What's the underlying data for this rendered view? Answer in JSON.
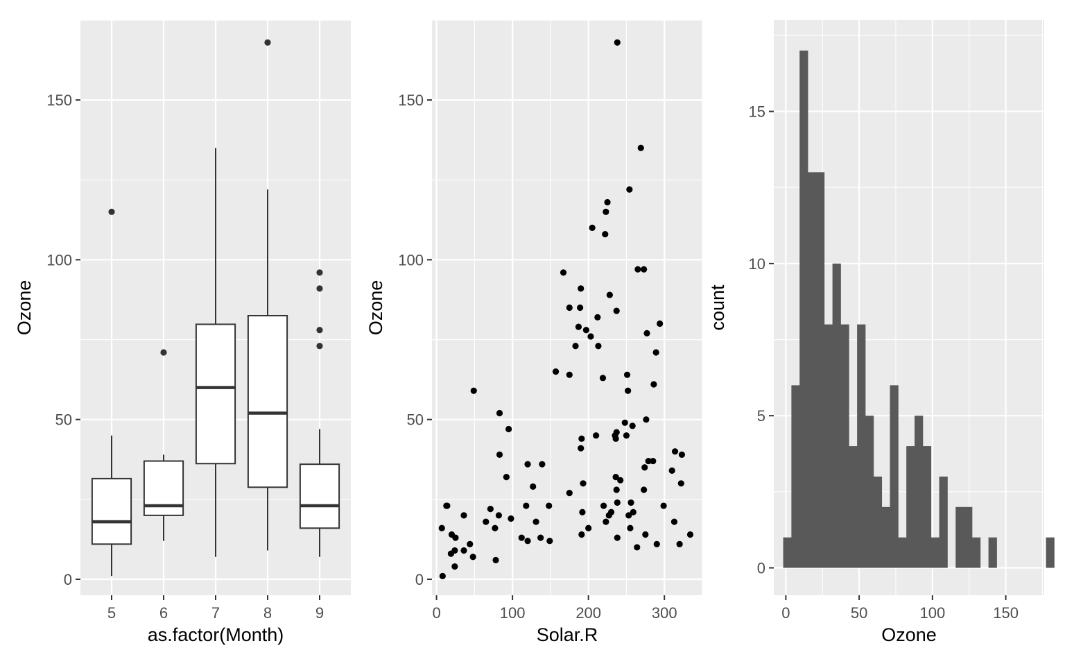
{
  "chart_data": [
    {
      "type": "boxplot",
      "xlabel": "as.factor(Month)",
      "ylabel": "Ozone",
      "ylim": [
        -5,
        175
      ],
      "yticks": [
        0,
        50,
        100,
        150
      ],
      "categories": [
        "5",
        "6",
        "7",
        "8",
        "9"
      ],
      "boxes": [
        {
          "category": "5",
          "lower": 1,
          "q1": 11,
          "median": 18,
          "q3": 31.5,
          "upper": 45,
          "outliers": [
            115
          ]
        },
        {
          "category": "6",
          "lower": 12,
          "q1": 20,
          "median": 23,
          "q3": 37,
          "upper": 39,
          "outliers": [
            71
          ]
        },
        {
          "category": "7",
          "lower": 7,
          "q1": 36.2,
          "median": 60,
          "q3": 79.8,
          "upper": 135,
          "outliers": []
        },
        {
          "category": "8",
          "lower": 9,
          "q1": 28.8,
          "median": 52,
          "q3": 82.5,
          "upper": 122,
          "outliers": [
            168
          ]
        },
        {
          "category": "9",
          "lower": 7,
          "q1": 16,
          "median": 23,
          "q3": 36,
          "upper": 47,
          "outliers": [
            73,
            78,
            91,
            96
          ]
        }
      ]
    },
    {
      "type": "scatter",
      "xlabel": "Solar.R",
      "ylabel": "Ozone",
      "xlim": [
        -6,
        350
      ],
      "ylim": [
        -5,
        175
      ],
      "xticks": [
        0,
        100,
        200,
        300
      ],
      "yticks": [
        0,
        50,
        100,
        150
      ],
      "points": [
        [
          8,
          1
        ],
        [
          7,
          16
        ],
        [
          13,
          23
        ],
        [
          14,
          23
        ],
        [
          19,
          8
        ],
        [
          20,
          14
        ],
        [
          24,
          9
        ],
        [
          24,
          4
        ],
        [
          25,
          13
        ],
        [
          36,
          20
        ],
        [
          36,
          9
        ],
        [
          44,
          11
        ],
        [
          48,
          7
        ],
        [
          49,
          59
        ],
        [
          65,
          18
        ],
        [
          71,
          22
        ],
        [
          77,
          16
        ],
        [
          78,
          6
        ],
        [
          82,
          20
        ],
        [
          83,
          52
        ],
        [
          83,
          39
        ],
        [
          92,
          32
        ],
        [
          95,
          47
        ],
        [
          98,
          19
        ],
        [
          112,
          13
        ],
        [
          118,
          23
        ],
        [
          120,
          12
        ],
        [
          120,
          36
        ],
        [
          127,
          29
        ],
        [
          131,
          18
        ],
        [
          137,
          13
        ],
        [
          139,
          36
        ],
        [
          148,
          23
        ],
        [
          149,
          12
        ],
        [
          157,
          65
        ],
        [
          167,
          96
        ],
        [
          175,
          27
        ],
        [
          175,
          64
        ],
        [
          175,
          85
        ],
        [
          183,
          73
        ],
        [
          187,
          79
        ],
        [
          189,
          85
        ],
        [
          190,
          91
        ],
        [
          190,
          41
        ],
        [
          191,
          44
        ],
        [
          191,
          14
        ],
        [
          192,
          21
        ],
        [
          193,
          30
        ],
        [
          197,
          78
        ],
        [
          200,
          16
        ],
        [
          203,
          76
        ],
        [
          205,
          110
        ],
        [
          210,
          45
        ],
        [
          212,
          82
        ],
        [
          213,
          73
        ],
        [
          219,
          63
        ],
        [
          220,
          23
        ],
        [
          222,
          108
        ],
        [
          223,
          115
        ],
        [
          223,
          18
        ],
        [
          225,
          118
        ],
        [
          227,
          20
        ],
        [
          228,
          89
        ],
        [
          230,
          21
        ],
        [
          235,
          45
        ],
        [
          236,
          44
        ],
        [
          236,
          32
        ],
        [
          237,
          46
        ],
        [
          237,
          84
        ],
        [
          237,
          28
        ],
        [
          238,
          168
        ],
        [
          238,
          24
        ],
        [
          238,
          13
        ],
        [
          242,
          31
        ],
        [
          248,
          49
        ],
        [
          250,
          45
        ],
        [
          251,
          64
        ],
        [
          252,
          59
        ],
        [
          253,
          20
        ],
        [
          254,
          122
        ],
        [
          255,
          16
        ],
        [
          256,
          24
        ],
        [
          258,
          48
        ],
        [
          259,
          21
        ],
        [
          264,
          10
        ],
        [
          265,
          97
        ],
        [
          269,
          135
        ],
        [
          273,
          28
        ],
        [
          273,
          97
        ],
        [
          274,
          35
        ],
        [
          275,
          14
        ],
        [
          276,
          50
        ],
        [
          277,
          77
        ],
        [
          279,
          37
        ],
        [
          285,
          37
        ],
        [
          286,
          61
        ],
        [
          289,
          71
        ],
        [
          290,
          11
        ],
        [
          294,
          80
        ],
        [
          299,
          23
        ],
        [
          310,
          34
        ],
        [
          313,
          18
        ],
        [
          314,
          40
        ],
        [
          320,
          11
        ],
        [
          322,
          30
        ],
        [
          323,
          39
        ],
        [
          334,
          14
        ]
      ]
    },
    {
      "type": "histogram",
      "xlabel": "Ozone",
      "ylabel": "count",
      "xlim": [
        -8.2,
        176.2
      ],
      "ylim": [
        -0.9,
        18
      ],
      "xticks": [
        0,
        50,
        100,
        150
      ],
      "yticks": [
        0,
        5,
        10,
        15
      ],
      "binwidth": 5.6,
      "first_bin_left": -1.8,
      "counts": [
        1,
        6,
        17,
        13,
        13,
        8,
        10,
        8,
        4,
        8,
        5,
        3,
        2,
        6,
        1,
        4,
        5,
        4,
        1,
        3,
        0,
        2,
        2,
        1,
        0,
        1,
        0,
        0,
        0,
        0,
        0,
        0,
        1
      ]
    }
  ]
}
